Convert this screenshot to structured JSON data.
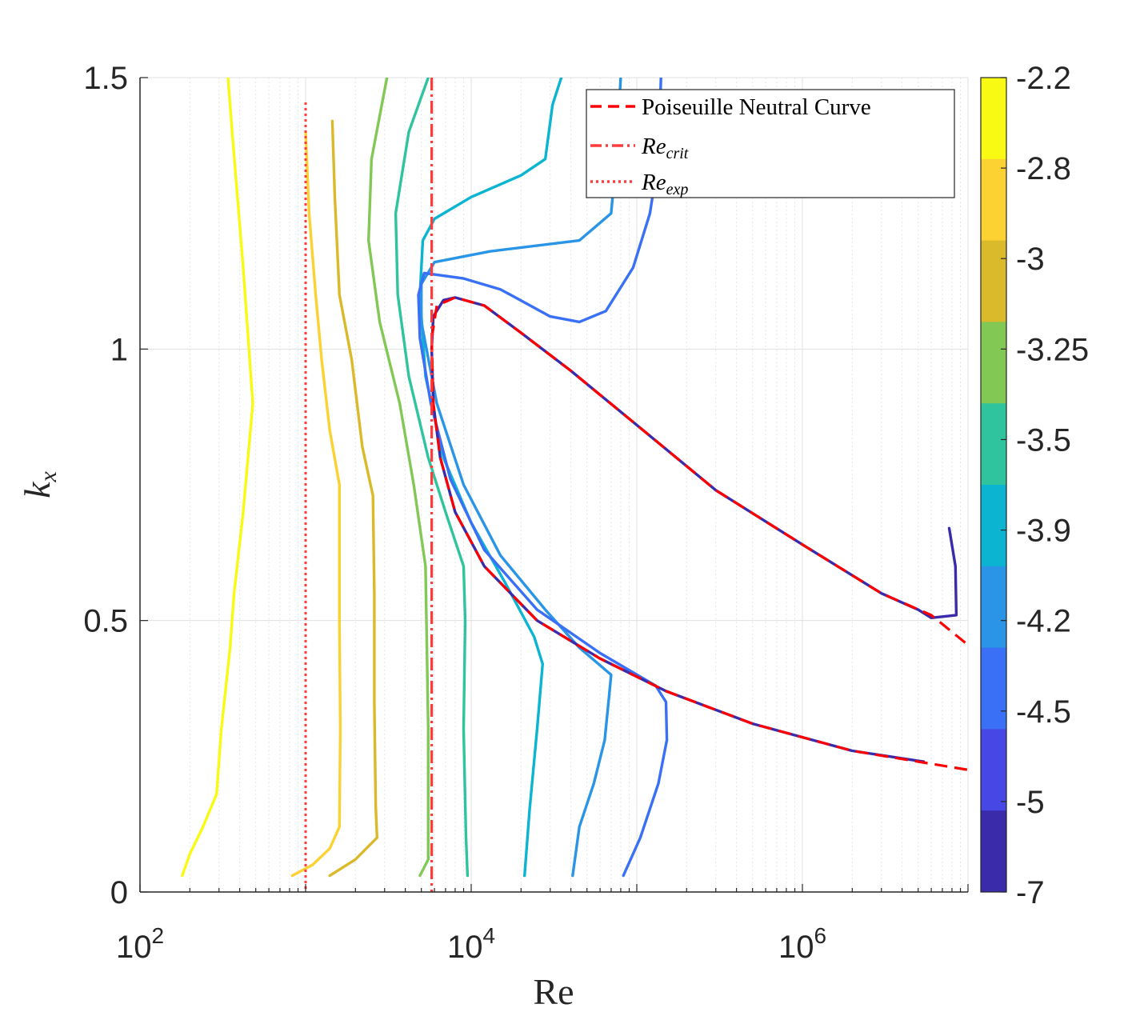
{
  "chart_data": {
    "type": "contour",
    "xlabel": "Re",
    "ylabel": "k_x",
    "xscale": "log",
    "xlim": [
      100,
      10000000
    ],
    "ylim": [
      0,
      1.5
    ],
    "xticks": [
      {
        "value": 100,
        "base": "10",
        "exp": "2"
      },
      {
        "value": 10000,
        "base": "10",
        "exp": "4"
      },
      {
        "value": 1000000,
        "base": "10",
        "exp": "6"
      }
    ],
    "yticks": [
      {
        "value": 0,
        "label": "0"
      },
      {
        "value": 0.5,
        "label": "0.5"
      },
      {
        "value": 1,
        "label": "1"
      },
      {
        "value": 1.5,
        "label": "1.5"
      }
    ],
    "colorbar": {
      "labels": [
        "-2.2",
        "-2.8",
        "-3",
        "-3.25",
        "-3.5",
        "-3.9",
        "-4.2",
        "-4.5",
        "-5",
        "-7"
      ],
      "colors": [
        "#f9fa14",
        "#fcd132",
        "#dab92a",
        "#82c855",
        "#2fc49e",
        "#0bb4d0",
        "#2a95e6",
        "#3a70f5",
        "#4747e6",
        "#3a2bab"
      ]
    },
    "legend": {
      "position": "top-right",
      "entries": [
        {
          "label": "Poiseuille Neutral Curve",
          "style": "dashed",
          "color": "#ff0000"
        },
        {
          "label": "Re",
          "sub": "crit",
          "style": "dashdot",
          "color": "#ff3c3c"
        },
        {
          "label": "Re",
          "sub": "exp",
          "style": "dotted",
          "color": "#ff3c3c"
        }
      ]
    },
    "reference_lines": [
      {
        "name": "Re_crit",
        "x": 5772
      },
      {
        "name": "Re_exp",
        "x": 1000
      }
    ],
    "neutral_curve": [
      [
        5772,
        1.02
      ],
      [
        6200,
        1.08
      ],
      [
        8000,
        1.095
      ],
      [
        12000,
        1.08
      ],
      [
        20000,
        1.03
      ],
      [
        40000,
        0.96
      ],
      [
        100000,
        0.86
      ],
      [
        300000,
        0.74
      ],
      [
        1000000,
        0.64
      ],
      [
        3000000,
        0.55
      ],
      [
        6000000,
        0.51
      ],
      [
        10000000,
        0.455
      ]
    ],
    "neutral_curve_lower": [
      [
        5772,
        1.02
      ],
      [
        5900,
        0.9
      ],
      [
        6500,
        0.8
      ],
      [
        8000,
        0.7
      ],
      [
        12000,
        0.6
      ],
      [
        25000,
        0.5
      ],
      [
        60000,
        0.43
      ],
      [
        150000,
        0.37
      ],
      [
        500000,
        0.31
      ],
      [
        2000000,
        0.26
      ],
      [
        10000000,
        0.225
      ]
    ],
    "series": [
      {
        "name": "contour -2.2",
        "color": "#f9fa14",
        "points": [
          [
            180,
            0.03
          ],
          [
            200,
            0.07
          ],
          [
            240,
            0.12
          ],
          [
            290,
            0.18
          ],
          [
            310,
            0.3
          ],
          [
            350,
            0.45
          ],
          [
            370,
            0.55
          ],
          [
            420,
            0.7
          ],
          [
            480,
            0.9
          ],
          [
            420,
            1.15
          ],
          [
            360,
            1.4
          ],
          [
            340,
            1.5
          ]
        ]
      },
      {
        "name": "contour -2.8",
        "color": "#fcd132",
        "points": [
          [
            830,
            0.03
          ],
          [
            1100,
            0.05
          ],
          [
            1400,
            0.08
          ],
          [
            1600,
            0.12
          ],
          [
            1620,
            0.3
          ],
          [
            1600,
            0.5
          ],
          [
            1600,
            0.75
          ],
          [
            1400,
            0.85
          ],
          [
            1250,
            0.98
          ],
          [
            1150,
            1.1
          ],
          [
            1050,
            1.25
          ],
          [
            1000,
            1.4
          ]
        ]
      },
      {
        "name": "contour -3",
        "color": "#dab92a",
        "points": [
          [
            1400,
            0.03
          ],
          [
            2000,
            0.06
          ],
          [
            2700,
            0.1
          ],
          [
            2650,
            0.16
          ],
          [
            2600,
            0.35
          ],
          [
            2600,
            0.55
          ],
          [
            2550,
            0.73
          ],
          [
            2200,
            0.82
          ],
          [
            1900,
            0.98
          ],
          [
            1600,
            1.1
          ],
          [
            1500,
            1.28
          ],
          [
            1450,
            1.42
          ]
        ]
      },
      {
        "name": "contour -3.25",
        "color": "#82c855",
        "points": [
          [
            4900,
            0.03
          ],
          [
            5500,
            0.06
          ],
          [
            5500,
            0.3
          ],
          [
            5300,
            0.6
          ],
          [
            4500,
            0.75
          ],
          [
            3700,
            0.9
          ],
          [
            2800,
            1.05
          ],
          [
            2400,
            1.2
          ],
          [
            2500,
            1.35
          ],
          [
            3100,
            1.5
          ]
        ]
      },
      {
        "name": "contour -3.5",
        "color": "#2fc49e",
        "points": [
          [
            9500,
            0.03
          ],
          [
            9300,
            0.1
          ],
          [
            9000,
            0.3
          ],
          [
            9200,
            0.5
          ],
          [
            9000,
            0.6
          ],
          [
            7000,
            0.7
          ],
          [
            5500,
            0.8
          ],
          [
            4200,
            0.95
          ],
          [
            3600,
            1.1
          ],
          [
            3500,
            1.25
          ],
          [
            4200,
            1.4
          ],
          [
            5500,
            1.5
          ]
        ]
      },
      {
        "name": "contour -3.9",
        "color": "#0bb4d0",
        "points": [
          [
            21000,
            0.03
          ],
          [
            22500,
            0.15
          ],
          [
            25000,
            0.3
          ],
          [
            27000,
            0.42
          ],
          [
            24000,
            0.47
          ],
          [
            16000,
            0.57
          ],
          [
            10000,
            0.68
          ],
          [
            6800,
            0.8
          ],
          [
            5300,
            0.95
          ],
          [
            4900,
            1.1
          ],
          [
            5100,
            1.2
          ],
          [
            6000,
            1.24
          ],
          [
            10000,
            1.28
          ],
          [
            20000,
            1.32
          ],
          [
            28000,
            1.35
          ],
          [
            31000,
            1.45
          ],
          [
            35000,
            1.5
          ]
        ]
      },
      {
        "name": "contour -4.2",
        "color": "#2a95e6",
        "points": [
          [
            41000,
            0.03
          ],
          [
            45000,
            0.12
          ],
          [
            55000,
            0.2
          ],
          [
            64000,
            0.28
          ],
          [
            68000,
            0.36
          ],
          [
            70000,
            0.4
          ],
          [
            45000,
            0.45
          ],
          [
            28000,
            0.52
          ],
          [
            15000,
            0.62
          ],
          [
            9000,
            0.75
          ],
          [
            6200,
            0.9
          ],
          [
            5000,
            1.05
          ],
          [
            5000,
            1.12
          ],
          [
            6000,
            1.16
          ],
          [
            13000,
            1.18
          ],
          [
            45000,
            1.2
          ],
          [
            70000,
            1.25
          ],
          [
            75000,
            1.35
          ],
          [
            80000,
            1.5
          ]
        ]
      },
      {
        "name": "contour -4.5",
        "color": "#3a70f5",
        "points": [
          [
            83000,
            0.03
          ],
          [
            105000,
            0.1
          ],
          [
            135000,
            0.2
          ],
          [
            152000,
            0.28
          ],
          [
            150000,
            0.35
          ],
          [
            130000,
            0.38
          ],
          [
            60000,
            0.44
          ],
          [
            25000,
            0.52
          ],
          [
            12000,
            0.63
          ],
          [
            7500,
            0.76
          ],
          [
            5700,
            0.9
          ],
          [
            4900,
            1.02
          ],
          [
            4800,
            1.1
          ],
          [
            5200,
            1.14
          ],
          [
            9000,
            1.13
          ],
          [
            15000,
            1.11
          ],
          [
            30000,
            1.06
          ],
          [
            45000,
            1.05
          ],
          [
            65000,
            1.07
          ],
          [
            95000,
            1.15
          ],
          [
            120000,
            1.25
          ],
          [
            135000,
            1.35
          ],
          [
            140000,
            1.5
          ]
        ]
      },
      {
        "name": "contour -5",
        "color": "#3a2bab",
        "points": [
          [
            5400000,
            0.24
          ],
          [
            2000000,
            0.26
          ],
          [
            500000,
            0.31
          ],
          [
            150000,
            0.37
          ],
          [
            60000,
            0.43
          ],
          [
            25000,
            0.5
          ],
          [
            12000,
            0.6
          ],
          [
            8000,
            0.7
          ],
          [
            6500,
            0.8
          ],
          [
            5900,
            0.9
          ],
          [
            5772,
            1.0
          ],
          [
            5900,
            1.06
          ],
          [
            6800,
            1.09
          ],
          [
            8000,
            1.095
          ],
          [
            12000,
            1.08
          ],
          [
            20000,
            1.03
          ],
          [
            40000,
            0.96
          ],
          [
            100000,
            0.86
          ],
          [
            300000,
            0.74
          ],
          [
            1000000,
            0.64
          ],
          [
            3000000,
            0.55
          ],
          [
            5000000,
            0.52
          ],
          [
            6000000,
            0.505
          ],
          [
            8500000,
            0.51
          ],
          [
            8400000,
            0.6
          ],
          [
            7700000,
            0.67
          ]
        ]
      }
    ]
  }
}
